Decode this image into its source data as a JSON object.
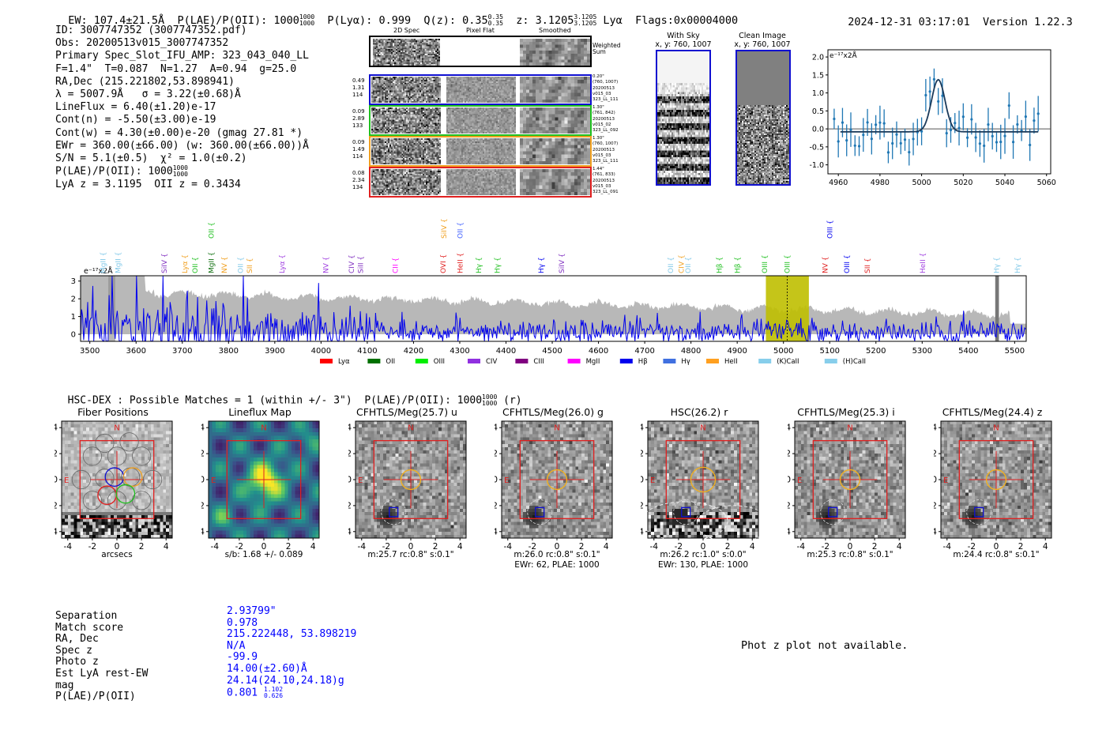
{
  "header": {
    "ew_label": "EW: ",
    "ew_value": "107.4±21.5Å",
    "plae_label": "P(LAE)/P(OII): ",
    "plae_value": "1000",
    "plae_hi": "1000",
    "plae_lo": "1000",
    "plya_label": "P(Lyα): ",
    "plya_value": "0.999",
    "qz_label": "Q(z): ",
    "qz_value": "0.35",
    "qz_hi": "0.35",
    "qz_lo": "0.35",
    "z_label": "z: ",
    "z_value": "3.1205",
    "z_hi": "3.1205",
    "z_lo": "3.1205",
    "z_line": "Lyα",
    "flags": "Flags:0x00004000",
    "timestamp": "2024-12-31 03:17:01",
    "version": "Version 1.22.3"
  },
  "info": {
    "lines": [
      "ID: 3007747352 (3007747352.pdf)",
      "Obs: 20200513v015_3007747352",
      "Primary Spec_Slot_IFU_AMP: 323_043_040_LL",
      "F=1.4\"  T=0.087  N=1.27  A=0.94  g=25.0",
      "RA,Dec (215.221802,53.898941)",
      "λ = 5007.9Å   σ = 3.22(±0.68)Å",
      "LineFlux = 6.40(±1.20)e-17",
      "Cont(n) = -5.50(±3.00)e-19",
      "Cont(w) = 4.30(±0.00)e-20 (gmag 27.81 *)",
      "EWr = 360.00(±66.00) (w: 360.00(±66.00))Å",
      "S/N = 5.1(±0.5)  χ² = 1.0(±0.2)",
      "P(LAE)/P(OII): 1000",
      "LyA z = 3.1195  OII z = 0.3434"
    ],
    "plae_hi": "1000",
    "plae_lo": "1000"
  },
  "spec2d": {
    "col_titles": [
      "2D Spec",
      "Pixel Flat",
      "Smoothed"
    ],
    "weighted_label": "Weighted Sum",
    "rows": [
      {
        "nums": [
          "0.49",
          "1.31",
          "114"
        ],
        "meta": [
          "0.20\"",
          "(760, 1007)",
          "20200513",
          "v015_03",
          "323_LL_111"
        ],
        "color": "#1010d0"
      },
      {
        "nums": [
          "0.09",
          "2.89",
          "133"
        ],
        "meta": [
          "1.30\"",
          "(761, 842)",
          "20200513",
          "v015_02",
          "323_LL_092"
        ],
        "color": "#20c020"
      },
      {
        "nums": [
          "0.09",
          "1.49",
          "114"
        ],
        "meta": [
          "1.30\"",
          "(760, 1007)",
          "20200513",
          "v015_03",
          "323_LL_111"
        ],
        "color": "#f0a020"
      },
      {
        "nums": [
          "0.08",
          "2.34",
          "134"
        ],
        "meta": [
          "1.44\"",
          "(761, 833)",
          "20200513",
          "v015_03",
          "323_LL_091"
        ],
        "color": "#e02020"
      }
    ]
  },
  "sky": {
    "with_sky_title": "With Sky",
    "with_sky_xy": "x, y: 760, 1007",
    "clean_title": "Clean Image",
    "clean_xy": "x, y: 760, 1007"
  },
  "zoom_plot": {
    "unit_label": "e⁻¹⁷x2Å",
    "x_ticks": [
      "4960",
      "4980",
      "5000",
      "5020",
      "5040",
      "5060"
    ],
    "y_ticks": [
      "2.0",
      "1.5",
      "1.0",
      "0.5",
      "0.0",
      "-0.5",
      "-1.0"
    ]
  },
  "chart_data": {
    "type": "line",
    "title": "",
    "ylabel": "e⁻¹⁷x2Å",
    "xlabel": "",
    "x_ticks": [
      "3500",
      "3600",
      "3700",
      "3800",
      "3900",
      "4000",
      "4100",
      "4200",
      "4300",
      "4400",
      "4500",
      "4600",
      "4700",
      "4800",
      "4900",
      "5000",
      "5100",
      "5200",
      "5300",
      "5400",
      "5500"
    ],
    "y_ticks": [
      "3",
      "2",
      "1",
      "0"
    ],
    "xlim": [
      3480,
      5525
    ],
    "ylim": [
      -0.4,
      3.3
    ],
    "highlight_range": [
      4962,
      5055
    ],
    "line_marker": 5008,
    "lines": [
      {
        "name": "MgII",
        "wave": 3528,
        "color": "#80c8e8",
        "row": "low"
      },
      {
        "name": "MgII",
        "wave": 3560,
        "color": "#80c8e8",
        "row": "low"
      },
      {
        "name": "SiIV",
        "wave": 3660,
        "color": "#8030c0",
        "row": "low"
      },
      {
        "name": "Lyα",
        "wave": 3705,
        "color": "#f0a020",
        "row": "low"
      },
      {
        "name": "OII",
        "wave": 3727,
        "color": "#20c020",
        "row": "low"
      },
      {
        "name": "MgII",
        "wave": 3762,
        "color": "#107010",
        "row": "low"
      },
      {
        "name": "OII",
        "wave": 3762,
        "color": "#20c020",
        "row": "high"
      },
      {
        "name": "NV",
        "wave": 3790,
        "color": "#f0a020",
        "row": "low"
      },
      {
        "name": "OII",
        "wave": 3825,
        "color": "#80c8e8",
        "row": "low"
      },
      {
        "name": "SII",
        "wave": 3845,
        "color": "#f0a020",
        "row": "low"
      },
      {
        "name": "Lyα",
        "wave": 3915,
        "color": "#a040e0",
        "row": "low"
      },
      {
        "name": "NV",
        "wave": 4010,
        "color": "#a040e0",
        "row": "low"
      },
      {
        "name": "CIV",
        "wave": 4065,
        "color": "#8030c0",
        "row": "low"
      },
      {
        "name": "SiII",
        "wave": 4085,
        "color": "#8030c0",
        "row": "low"
      },
      {
        "name": "CII",
        "wave": 4160,
        "color": "#ff00ff",
        "row": "low"
      },
      {
        "name": "OVI",
        "wave": 4263,
        "color": "#e02020",
        "row": "low"
      },
      {
        "name": "SiIV",
        "wave": 4265,
        "color": "#f0a020",
        "row": "high"
      },
      {
        "name": "HeII",
        "wave": 4300,
        "color": "#e02020",
        "row": "low"
      },
      {
        "name": "OII",
        "wave": 4300,
        "color": "#4060ff",
        "row": "high"
      },
      {
        "name": "Hγ",
        "wave": 4340,
        "color": "#20c020",
        "row": "low"
      },
      {
        "name": "Hγ",
        "wave": 4380,
        "color": "#20c020",
        "row": "low"
      },
      {
        "name": "Hγ",
        "wave": 4475,
        "color": "#0000f0",
        "row": "low"
      },
      {
        "name": "SiIV",
        "wave": 4520,
        "color": "#8030c0",
        "row": "low"
      },
      {
        "name": "OII",
        "wave": 4755,
        "color": "#80c8e8",
        "row": "low"
      },
      {
        "name": "CIV",
        "wave": 4778,
        "color": "#f0a020",
        "row": "low"
      },
      {
        "name": "OII",
        "wave": 4793,
        "color": "#80c8e8",
        "row": "low"
      },
      {
        "name": "Hβ",
        "wave": 4860,
        "color": "#20c020",
        "row": "low"
      },
      {
        "name": "Hβ",
        "wave": 4900,
        "color": "#20c020",
        "row": "low"
      },
      {
        "name": "OIII",
        "wave": 4959,
        "color": "#20c020",
        "row": "low"
      },
      {
        "name": "OIII",
        "wave": 5007,
        "color": "#20c020",
        "row": "low"
      },
      {
        "name": "NV",
        "wave": 5089,
        "color": "#e02020",
        "row": "low"
      },
      {
        "name": "OIII",
        "wave": 5100,
        "color": "#0000f0",
        "row": "high"
      },
      {
        "name": "OIII",
        "wave": 5136,
        "color": "#0000f0",
        "row": "low"
      },
      {
        "name": "SII",
        "wave": 5181,
        "color": "#e02020",
        "row": "low"
      },
      {
        "name": "HeII",
        "wave": 5300,
        "color": "#a040e0",
        "row": "low"
      },
      {
        "name": "Hγ",
        "wave": 5460,
        "color": "#80c8e8",
        "row": "low"
      },
      {
        "name": "Hγ",
        "wave": 5505,
        "color": "#80c8e8",
        "row": "low"
      }
    ],
    "legend": [
      {
        "name": "Lyα",
        "color": "#ff0000"
      },
      {
        "name": "OII",
        "color": "#007000"
      },
      {
        "name": "OIII",
        "color": "#00ee00"
      },
      {
        "name": "CIV",
        "color": "#9030e0"
      },
      {
        "name": "CIII",
        "color": "#800080"
      },
      {
        "name": "MgII",
        "color": "#ff00ff"
      },
      {
        "name": "Hβ",
        "color": "#0000ee"
      },
      {
        "name": "Hγ",
        "color": "#4070e0"
      },
      {
        "name": "HeII",
        "color": "#ffa020"
      },
      {
        "name": "(K)CaII",
        "color": "#87ceeb"
      },
      {
        "name": "(H)CaII",
        "color": "#87ceeb"
      }
    ]
  },
  "hsc": {
    "title": "HSC-DEX : Possible Matches = 1 (within +/- 3\")  P(LAE)/P(OII): 1000",
    "plae_hi": "1000",
    "plae_lo": "1000",
    "suffix": " (r)"
  },
  "cutouts": [
    {
      "title": "Fiber Positions",
      "sub1": "arcsecs",
      "sub2": ""
    },
    {
      "title": "Lineflux Map",
      "sub1": "s/b: 1.68 +/- 0.089",
      "sub2": ""
    },
    {
      "title": "CFHTLS/Meg(25.7) u",
      "sub1": "m:25.7 rc:0.8\"  s:0.1\"",
      "sub2": ""
    },
    {
      "title": "CFHTLS/Meg(26.0) g",
      "sub1": "m:26.0 rc:0.8\"  s:0.1\"",
      "sub2": "EWr: 62, PLAE: 1000"
    },
    {
      "title": "HSC(26.2) r",
      "sub1": "m:26.2 rc:1.0\"  s:0.0\"",
      "sub2": "EWr: 130, PLAE: 1000"
    },
    {
      "title": "CFHTLS/Meg(25.3) i",
      "sub1": "m:25.3 rc:0.8\"  s:0.1\"",
      "sub2": ""
    },
    {
      "title": "CFHTLS/Meg(24.4) z",
      "sub1": "m:24.4 rc:0.8\"  s:0.1\"",
      "sub2": ""
    }
  ],
  "cutout_axes": {
    "ticks": [
      "4",
      "2",
      "0",
      "-2",
      "-4"
    ],
    "xticks": [
      "-4",
      "-2",
      "0",
      "2",
      "4"
    ],
    "north": "N",
    "east": "E"
  },
  "match_table": {
    "labels": [
      "Separation",
      "Match score",
      "RA, Dec",
      "Spec z",
      "Photo z",
      "Est LyA rest-EW",
      "mag",
      "P(LAE)/P(OII)"
    ],
    "values": [
      "2.93799\"",
      "0.978",
      "215.222448, 53.898219",
      "N/A",
      "-99.9",
      "14.00(±2.60)Å",
      "24.14(24.10,24.18)g",
      "0.801"
    ],
    "plae_hi": "1.102",
    "plae_lo": "0.626"
  },
  "photz_msg": "Phot z plot not available."
}
